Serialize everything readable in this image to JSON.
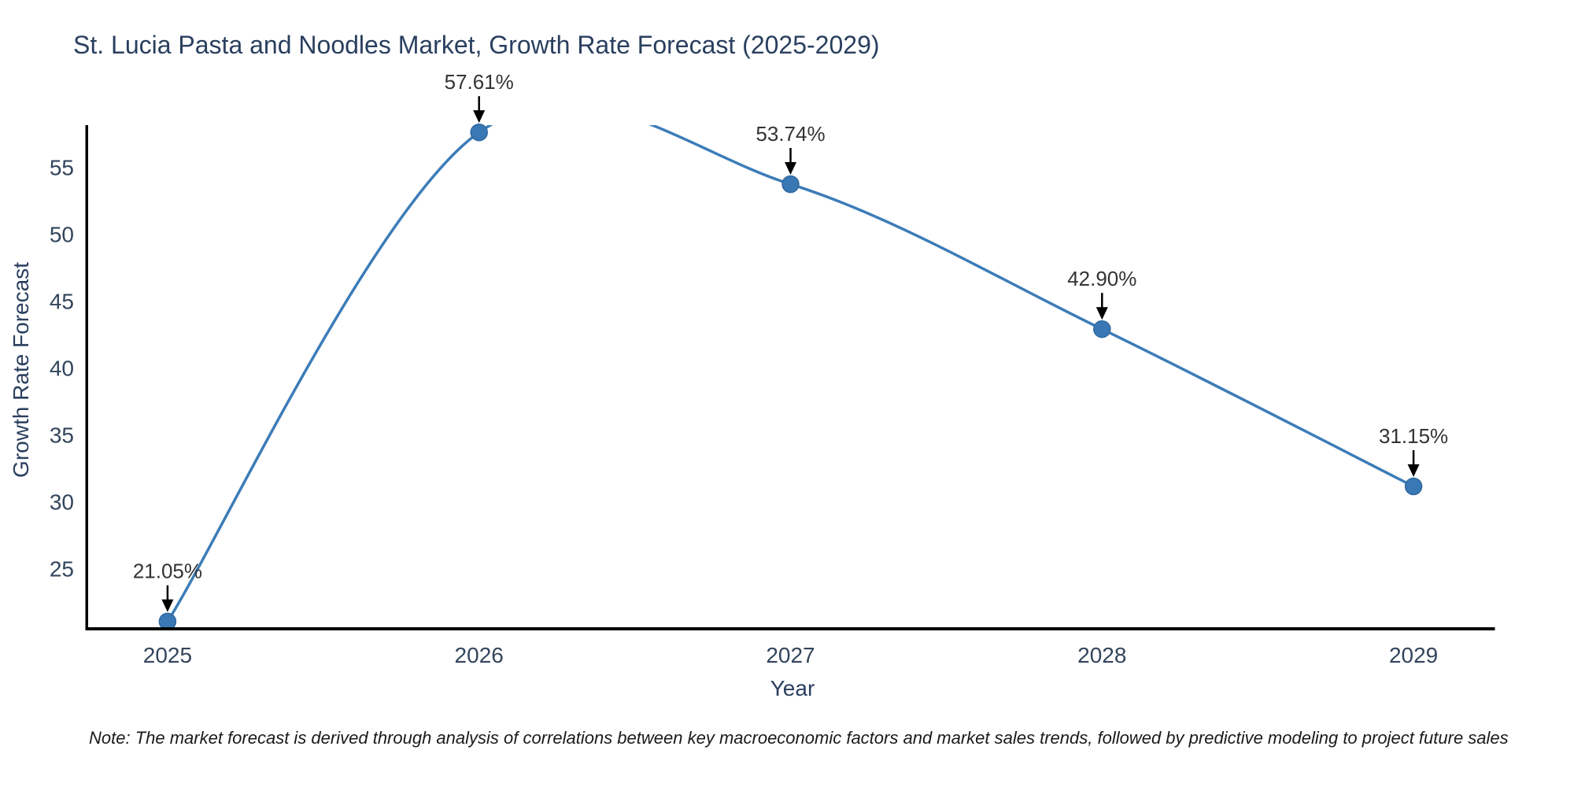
{
  "chart_data": {
    "type": "line",
    "title": "St. Lucia Pasta and Noodles Market, Growth Rate Forecast (2025-2029)",
    "xlabel": "Year",
    "ylabel": "Growth Rate Forecast",
    "categories": [
      "2025",
      "2026",
      "2027",
      "2028",
      "2029"
    ],
    "x": [
      2025,
      2026,
      2027,
      2028,
      2029
    ],
    "values": [
      21.05,
      57.61,
      53.74,
      42.9,
      31.15
    ],
    "point_labels": [
      "21.05%",
      "57.61%",
      "53.74%",
      "42.90%",
      "31.15%"
    ],
    "yticks": [
      25,
      30,
      35,
      40,
      45,
      50,
      55
    ],
    "ylim": [
      20.5,
      58.15
    ],
    "xlim": [
      2024.74,
      2029.26
    ],
    "grid": false,
    "legend_position": "none",
    "line_shape": "spline",
    "marker": "circle",
    "annotation_style": "arrow-down-to-point",
    "colors": {
      "line": "#3c7cb8",
      "marker_fill": "#3a78b5",
      "marker_edge": "#30689f",
      "annotation_arrow": "#000000",
      "annotation_text": "#333333",
      "tick_text": "#33455c",
      "title_text": "#2a3f5f",
      "spine": "#000000",
      "background": "#ffffff"
    }
  },
  "note": "Note: The market forecast is derived through analysis of correlations between key macroeconomic factors and market sales trends, followed by predictive modeling to project future sales"
}
